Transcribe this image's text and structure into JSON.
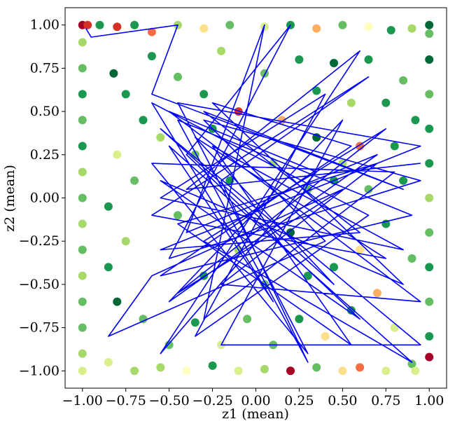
{
  "chart_data": {
    "type": "scatter",
    "title": "",
    "xlabel": "z1 (mean)",
    "ylabel": "z2 (mean)",
    "xlim": [
      -1.1,
      1.1
    ],
    "ylim": [
      -1.1,
      1.1
    ],
    "xticks": [
      -1.0,
      -0.75,
      -0.5,
      -0.25,
      0.0,
      0.25,
      0.5,
      0.75,
      1.0
    ],
    "yticks": [
      -1.0,
      -0.75,
      -0.5,
      -0.25,
      0.0,
      0.25,
      0.5,
      0.75,
      1.0
    ],
    "xtick_labels": [
      "−1.00",
      "−0.75",
      "−0.50",
      "−0.25",
      "0.00",
      "0.25",
      "0.50",
      "0.75",
      "1.00"
    ],
    "ytick_labels": [
      "−1.00",
      "−0.75",
      "−0.50",
      "−0.25",
      "0.00",
      "0.25",
      "0.50",
      "0.75",
      "1.00"
    ],
    "grid": false,
    "legend": "none",
    "colormap": [
      "#a50026",
      "#d73027",
      "#f46d43",
      "#fdae61",
      "#fee08b",
      "#ffffbf",
      "#d9ef8b",
      "#a6d96a",
      "#66bd63",
      "#1a9850",
      "#006837"
    ],
    "line_color": "#0000ff",
    "scatter_points": [
      [
        -1.0,
        1.0,
        0.0
      ],
      [
        -0.97,
        1.0,
        0.05
      ],
      [
        -0.9,
        1.0,
        0.85
      ],
      [
        -0.8,
        0.99,
        0.1
      ],
      [
        -0.7,
        1.0,
        0.9
      ],
      [
        -0.6,
        0.96,
        0.2
      ],
      [
        -0.45,
        1.0,
        0.7
      ],
      [
        -0.3,
        0.98,
        0.35
      ],
      [
        -0.15,
        1.0,
        0.8
      ],
      [
        0.05,
        0.99,
        0.6
      ],
      [
        0.2,
        1.0,
        0.9
      ],
      [
        0.35,
        0.98,
        0.25
      ],
      [
        0.5,
        1.0,
        0.75
      ],
      [
        0.65,
        0.99,
        0.5
      ],
      [
        0.78,
        0.97,
        0.85
      ],
      [
        0.9,
        0.98,
        0.7
      ],
      [
        1.0,
        1.0,
        0.95
      ],
      [
        -1.0,
        0.9,
        0.7
      ],
      [
        -1.0,
        0.75,
        0.8
      ],
      [
        -1.0,
        0.6,
        0.9
      ],
      [
        -1.0,
        0.45,
        0.75
      ],
      [
        -1.0,
        0.3,
        0.85
      ],
      [
        -1.0,
        0.15,
        0.7
      ],
      [
        -1.0,
        0.0,
        0.8
      ],
      [
        -1.0,
        -0.15,
        0.72
      ],
      [
        -1.0,
        -0.3,
        0.78
      ],
      [
        -1.0,
        -0.45,
        0.7
      ],
      [
        -1.0,
        -0.6,
        0.82
      ],
      [
        -1.0,
        -0.75,
        0.76
      ],
      [
        -1.0,
        -0.9,
        0.7
      ],
      [
        -1.0,
        -1.0,
        0.6
      ],
      [
        -0.85,
        -0.95,
        0.55
      ],
      [
        -0.7,
        -1.0,
        0.65
      ],
      [
        -0.55,
        -0.98,
        0.7
      ],
      [
        -0.4,
        -1.0,
        0.5
      ],
      [
        -0.25,
        -0.97,
        0.85
      ],
      [
        -0.1,
        -1.0,
        0.6
      ],
      [
        0.05,
        -0.99,
        0.7
      ],
      [
        0.2,
        -1.0,
        0.3
      ],
      [
        0.35,
        -0.98,
        0.75
      ],
      [
        0.5,
        -1.0,
        0.4
      ],
      [
        0.6,
        -0.98,
        0.2
      ],
      [
        0.75,
        -1.0,
        0.6
      ],
      [
        0.9,
        -0.96,
        0.8
      ],
      [
        1.0,
        -0.92,
        0.0
      ],
      [
        1.0,
        -0.8,
        0.85
      ],
      [
        1.0,
        -0.6,
        0.75
      ],
      [
        1.0,
        -0.4,
        0.9
      ],
      [
        1.0,
        -0.2,
        0.8
      ],
      [
        1.0,
        0.0,
        0.7
      ],
      [
        1.0,
        0.2,
        0.85
      ],
      [
        1.0,
        0.4,
        0.9
      ],
      [
        1.0,
        0.6,
        0.8
      ],
      [
        1.0,
        0.8,
        0.95
      ],
      [
        1.0,
        0.95,
        0.75
      ],
      [
        -0.82,
        0.72,
        0.95
      ],
      [
        -0.75,
        0.6,
        0.85
      ],
      [
        -0.6,
        0.82,
        0.9
      ],
      [
        -0.55,
        0.35,
        0.65
      ],
      [
        -0.45,
        0.7,
        0.8
      ],
      [
        -0.3,
        0.6,
        0.9
      ],
      [
        -0.2,
        0.85,
        0.7
      ],
      [
        -0.1,
        0.5,
        0.05
      ],
      [
        0.05,
        0.72,
        0.8
      ],
      [
        0.15,
        0.45,
        0.3
      ],
      [
        0.25,
        0.8,
        0.9
      ],
      [
        0.35,
        0.62,
        0.85
      ],
      [
        0.45,
        0.78,
        0.95
      ],
      [
        0.55,
        0.55,
        0.7
      ],
      [
        0.65,
        0.8,
        0.9
      ],
      [
        0.75,
        0.55,
        0.85
      ],
      [
        0.85,
        0.68,
        0.75
      ],
      [
        0.92,
        0.45,
        0.9
      ],
      [
        0.8,
        0.3,
        0.85
      ],
      [
        0.6,
        0.3,
        0.2
      ],
      [
        0.5,
        0.2,
        0.7
      ],
      [
        0.65,
        0.05,
        0.8
      ],
      [
        0.85,
        0.1,
        0.9
      ],
      [
        0.75,
        -0.15,
        0.85
      ],
      [
        0.9,
        -0.35,
        0.75
      ],
      [
        0.6,
        -0.3,
        0.35
      ],
      [
        0.45,
        -0.4,
        0.9
      ],
      [
        0.7,
        -0.55,
        0.3
      ],
      [
        0.55,
        -0.65,
        0.85
      ],
      [
        0.8,
        -0.75,
        0.6
      ],
      [
        0.4,
        -0.8,
        0.35
      ],
      [
        0.25,
        -0.7,
        0.9
      ],
      [
        0.1,
        -0.85,
        0.75
      ],
      [
        -0.05,
        -0.7,
        0.8
      ],
      [
        -0.2,
        -0.85,
        0.55
      ],
      [
        -0.35,
        -0.72,
        0.9
      ],
      [
        -0.5,
        -0.85,
        0.75
      ],
      [
        -0.65,
        -0.7,
        0.8
      ],
      [
        -0.8,
        -0.6,
        0.95
      ],
      [
        -0.85,
        -0.4,
        0.85
      ],
      [
        -0.75,
        -0.25,
        0.7
      ],
      [
        -0.85,
        -0.05,
        0.9
      ],
      [
        -0.7,
        0.1,
        0.8
      ],
      [
        -0.8,
        0.25,
        0.6
      ],
      [
        -0.65,
        0.45,
        0.85
      ],
      [
        -0.35,
        0.25,
        0.75
      ],
      [
        -0.15,
        0.1,
        0.9
      ],
      [
        0.1,
        0.2,
        0.65
      ],
      [
        0.3,
        0.05,
        0.8
      ],
      [
        0.2,
        -0.2,
        0.95
      ],
      [
        -0.1,
        -0.3,
        0.7
      ],
      [
        -0.3,
        -0.45,
        0.85
      ],
      [
        0.05,
        -0.5,
        0.75
      ],
      [
        0.3,
        -0.45,
        0.9
      ],
      [
        -0.45,
        -0.1,
        0.8
      ],
      [
        0.45,
        0.1,
        0.85
      ],
      [
        0.35,
        0.35,
        0.95
      ],
      [
        -0.25,
        0.4,
        0.85
      ],
      [
        0.2,
        -1.0,
        0.02
      ],
      [
        0.92,
        -1.0,
        0.6
      ]
    ],
    "line_points": [
      [
        -0.98,
        0.98
      ],
      [
        -0.95,
        0.93
      ],
      [
        -0.45,
        1.0
      ],
      [
        -0.6,
        0.6
      ],
      [
        0.85,
        0.05
      ],
      [
        -0.3,
        0.5
      ],
      [
        0.6,
        -0.2
      ],
      [
        -0.55,
        -0.3
      ],
      [
        0.95,
        0.3
      ],
      [
        -0.45,
        0.55
      ],
      [
        0.3,
        -0.9
      ],
      [
        -0.6,
        0.2
      ],
      [
        0.8,
        0.15
      ],
      [
        -0.3,
        -0.7
      ],
      [
        0.05,
        1.0
      ],
      [
        -0.4,
        -0.2
      ],
      [
        0.7,
        0.25
      ],
      [
        -0.5,
        -0.6
      ],
      [
        0.5,
        0.45
      ],
      [
        -0.2,
        -0.85
      ],
      [
        0.95,
        -0.85
      ],
      [
        -0.55,
        0.4
      ],
      [
        0.45,
        -0.5
      ],
      [
        -0.35,
        0.35
      ],
      [
        0.75,
        -0.35
      ],
      [
        -0.6,
        -0.1
      ],
      [
        0.65,
        0.7
      ],
      [
        -0.2,
        0.1
      ],
      [
        0.3,
        -0.95
      ],
      [
        -0.45,
        0.45
      ],
      [
        0.9,
        -0.1
      ],
      [
        -0.55,
        -0.45
      ],
      [
        0.55,
        0.3
      ],
      [
        -0.25,
        0.55
      ],
      [
        0.85,
        -0.5
      ],
      [
        -0.55,
        0.1
      ],
      [
        0.6,
        -0.7
      ],
      [
        -0.4,
        0.25
      ],
      [
        0.2,
        1.0
      ],
      [
        -0.5,
        -0.35
      ],
      [
        0.95,
        0.1
      ],
      [
        -0.3,
        0.45
      ],
      [
        0.4,
        -0.25
      ],
      [
        -0.85,
        -0.8
      ],
      [
        -0.6,
        -0.45
      ],
      [
        0.5,
        0.05
      ],
      [
        -0.45,
        -0.55
      ],
      [
        0.75,
        0.4
      ],
      [
        -0.3,
        -0.25
      ],
      [
        0.9,
        -0.95
      ],
      [
        -0.5,
        0.3
      ],
      [
        0.1,
        -0.6
      ],
      [
        -0.6,
        0.55
      ],
      [
        0.65,
        -0.1
      ],
      [
        -0.35,
        -0.8
      ],
      [
        0.4,
        0.6
      ],
      [
        -0.55,
        0.0
      ],
      [
        0.85,
        -0.3
      ],
      [
        -0.25,
        0.3
      ],
      [
        0.55,
        -0.85
      ],
      [
        -0.45,
        -0.15
      ],
      [
        0.7,
        0.2
      ],
      [
        -0.2,
        -0.5
      ],
      [
        0.95,
        -0.6
      ],
      [
        -0.5,
        0.5
      ],
      [
        0.35,
        0.15
      ],
      [
        -0.55,
        -0.9
      ],
      [
        0.6,
        0.85
      ],
      [
        -0.4,
        0.05
      ],
      [
        0.95,
        0.2
      ]
    ]
  }
}
